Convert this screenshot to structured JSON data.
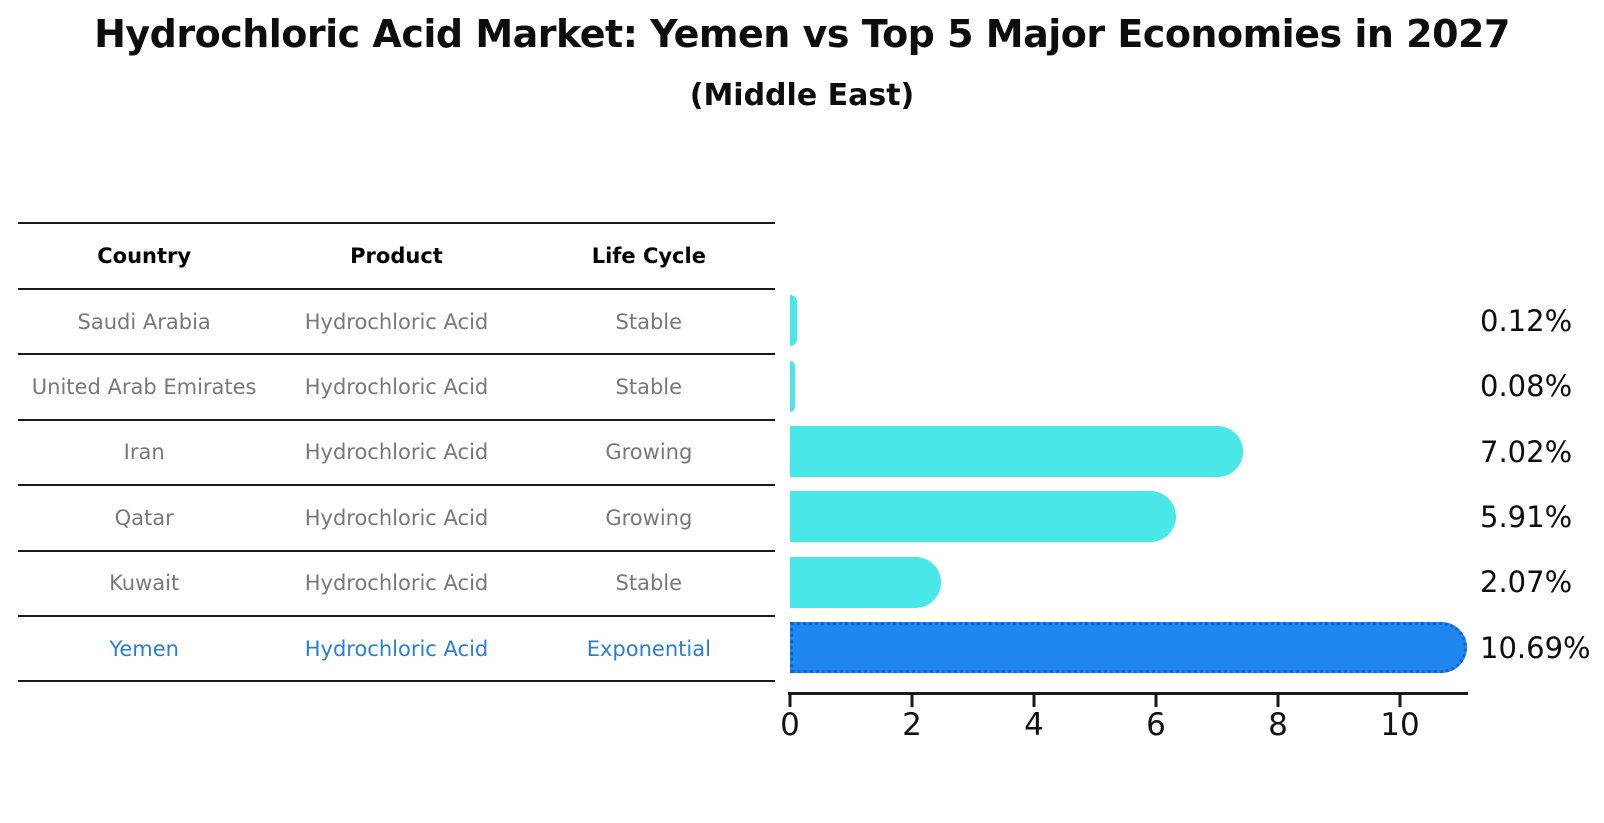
{
  "title": "Hydrochloric Acid Market: Yemen vs Top 5 Major Economies in 2027",
  "subtitle": "(Middle East)",
  "table": {
    "headers": [
      "Country",
      "Product",
      "Life Cycle"
    ],
    "rows": [
      {
        "country": "Saudi Arabia",
        "product": "Hydrochloric Acid",
        "life_cycle": "Stable",
        "highlight": false
      },
      {
        "country": "United Arab Emirates",
        "product": "Hydrochloric Acid",
        "life_cycle": "Stable",
        "highlight": false
      },
      {
        "country": "Iran",
        "product": "Hydrochloric Acid",
        "life_cycle": "Growing",
        "highlight": false
      },
      {
        "country": "Qatar",
        "product": "Hydrochloric Acid",
        "life_cycle": "Growing",
        "highlight": false
      },
      {
        "country": "Kuwait",
        "product": "Hydrochloric Acid",
        "life_cycle": "Stable",
        "highlight": false
      },
      {
        "country": "Yemen",
        "product": "Hydrochloric Acid",
        "life_cycle": "Exponential",
        "highlight": true
      }
    ]
  },
  "chart_data": {
    "type": "bar",
    "orientation": "horizontal",
    "title": "Hydrochloric Acid Market: Yemen vs Top 5 Major Economies in 2027",
    "subtitle": "(Middle East)",
    "categories": [
      "Saudi Arabia",
      "United Arab Emirates",
      "Iran",
      "Qatar",
      "Kuwait",
      "Yemen"
    ],
    "values": [
      0.12,
      0.08,
      7.02,
      5.91,
      2.07,
      10.69
    ],
    "value_labels": [
      "0.12%",
      "0.08%",
      "7.02%",
      "5.91%",
      "2.07%",
      "10.69%"
    ],
    "x_ticks": [
      "0",
      "2",
      "4",
      "6",
      "8",
      "10"
    ],
    "xlim": [
      0,
      11.2
    ],
    "grid": false,
    "legend": "none",
    "unit": "%",
    "bar_color": "#4ae7e8",
    "highlight_color": "#1e86ee",
    "highlight_border_color": "#0d66d0",
    "highlight_index": 5
  },
  "colors": {
    "title_text": "#0d0d0d",
    "muted_text": "#787878",
    "highlight_text": "#2a7fd4",
    "line": "#1a1a1a"
  }
}
